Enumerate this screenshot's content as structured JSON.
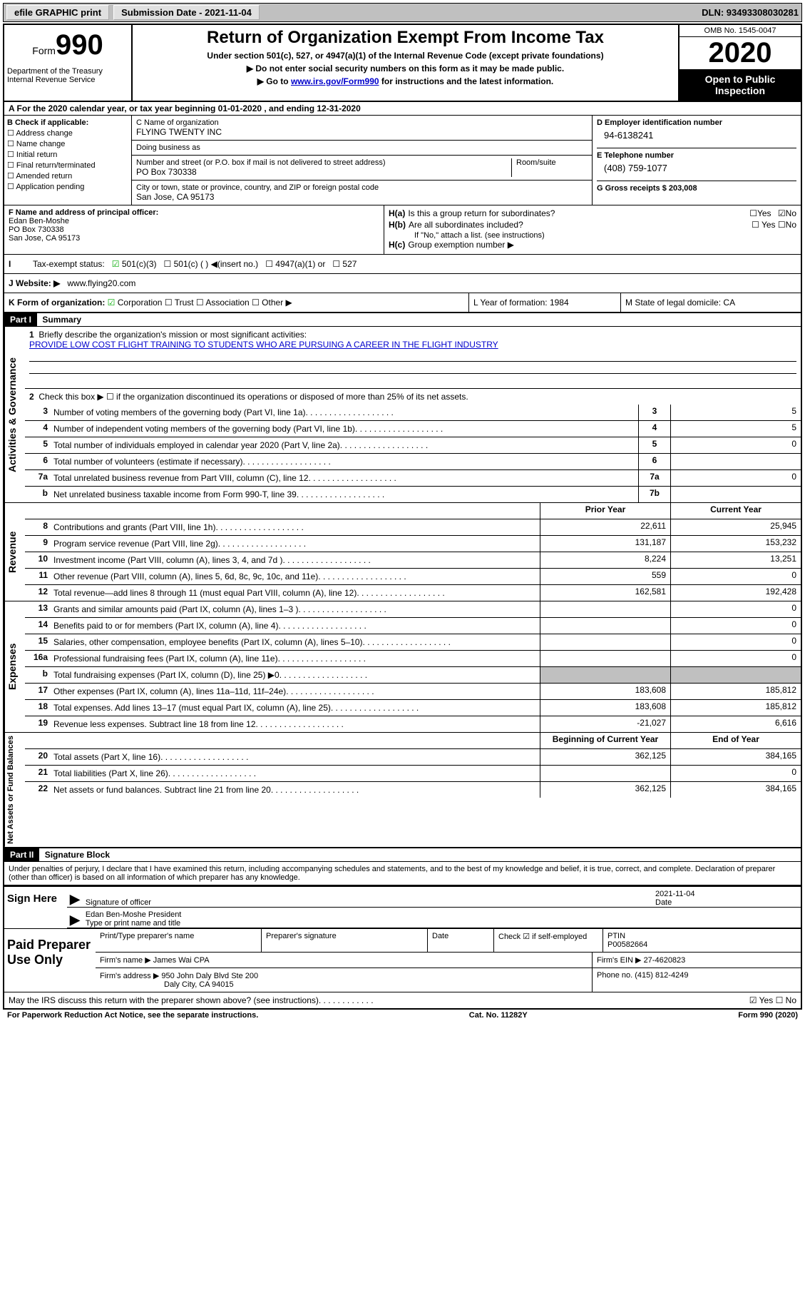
{
  "top_bar": {
    "efile": "efile GRAPHIC print",
    "sub_label": "Submission Date - 2021-11-04",
    "dln": "DLN: 93493308030281"
  },
  "header": {
    "form_word": "Form",
    "form_num": "990",
    "dept": "Department of the Treasury Internal Revenue Service",
    "title": "Return of Organization Exempt From Income Tax",
    "subtitle": "Under section 501(c), 527, or 4947(a)(1) of the Internal Revenue Code (except private foundations)",
    "instr1": "Do not enter social security numbers on this form as it may be made public.",
    "instr2_pre": "Go to ",
    "instr2_link": "www.irs.gov/Form990",
    "instr2_post": " for instructions and the latest information.",
    "omb": "OMB No. 1545-0047",
    "year": "2020",
    "inspect": "Open to Public Inspection"
  },
  "row_a": "A For the 2020 calendar year, or tax year beginning 01-01-2020    , and ending 12-31-2020",
  "col_b": {
    "hdr": "B Check if applicable:",
    "items": [
      "Address change",
      "Name change",
      "Initial return",
      "Final return/terminated",
      "Amended return",
      "Application pending"
    ]
  },
  "col_c": {
    "name_lbl": "C Name of organization",
    "name_val": "FLYING TWENTY INC",
    "dba_lbl": "Doing business as",
    "dba_val": "",
    "addr_lbl": "Number and street (or P.O. box if mail is not delivered to street address)",
    "room_lbl": "Room/suite",
    "addr_val": "PO Box 730338",
    "city_lbl": "City or town, state or province, country, and ZIP or foreign postal code",
    "city_val": "San Jose, CA  95173"
  },
  "col_d": {
    "ein_hdr": "D Employer identification number",
    "ein_val": "94-6138241",
    "tel_hdr": "E Telephone number",
    "tel_val": "(408) 759-1077",
    "gross_hdr": "G Gross receipts $ 203,008"
  },
  "block_f": {
    "hdr": "F  Name and address of principal officer:",
    "l1": "Edan Ben-Moshe",
    "l2": "PO Box 730338",
    "l3": "San Jose, CA  95173"
  },
  "block_h": {
    "a": "Is this a group return for subordinates?",
    "b": "Are all subordinates included?",
    "b_note": "If \"No,\" attach a list. (see instructions)",
    "c": "Group exemption number ▶"
  },
  "status": {
    "lbl": "Tax-exempt status:",
    "c3": "501(c)(3)",
    "c_other": "501(c) (   ) ◀(insert no.)",
    "a1": "4947(a)(1) or",
    "s527": "527"
  },
  "website": {
    "lbl": "J   Website: ▶",
    "val": "www.flying20.com"
  },
  "row_k": {
    "lbl": "K Form of organization:",
    "corp": "Corporation",
    "trust": "Trust",
    "assoc": "Association",
    "other": "Other ▶"
  },
  "row_l": {
    "lbl": "L Year of formation: 1984"
  },
  "row_m": {
    "lbl": "M State of legal domicile: CA"
  },
  "part1": {
    "hdr": "Part I",
    "title": "Summary",
    "vert1": "Activities & Governance",
    "vert2": "Revenue",
    "vert3": "Expenses",
    "vert4": "Net Assets or Fund Balances",
    "l1_lbl": "Briefly describe the organization's mission or most significant activities:",
    "l1_val": "PROVIDE LOW COST FLIGHT TRAINING TO STUDENTS WHO ARE PURSUING A CAREER IN THE FLIGHT INDUSTRY",
    "l2": "Check this box ▶ ☐  if the organization discontinued its operations or disposed of more than 25% of its net assets.",
    "lines_simple": [
      {
        "n": "3",
        "t": "Number of voting members of the governing body (Part VI, line 1a)",
        "c": "3",
        "v": "5"
      },
      {
        "n": "4",
        "t": "Number of independent voting members of the governing body (Part VI, line 1b)",
        "c": "4",
        "v": "5"
      },
      {
        "n": "5",
        "t": "Total number of individuals employed in calendar year 2020 (Part V, line 2a)",
        "c": "5",
        "v": "0"
      },
      {
        "n": "6",
        "t": "Total number of volunteers (estimate if necessary)",
        "c": "6",
        "v": ""
      },
      {
        "n": "7a",
        "t": "Total unrelated business revenue from Part VIII, column (C), line 12",
        "c": "7a",
        "v": "0"
      },
      {
        "n": "b",
        "t": "Net unrelated business taxable income from Form 990-T, line 39",
        "c": "7b",
        "v": ""
      }
    ],
    "col_hdr1": "Prior Year",
    "col_hdr2": "Current Year",
    "rev_lines": [
      {
        "n": "8",
        "t": "Contributions and grants (Part VIII, line 1h)",
        "v1": "22,611",
        "v2": "25,945"
      },
      {
        "n": "9",
        "t": "Program service revenue (Part VIII, line 2g)",
        "v1": "131,187",
        "v2": "153,232"
      },
      {
        "n": "10",
        "t": "Investment income (Part VIII, column (A), lines 3, 4, and 7d )",
        "v1": "8,224",
        "v2": "13,251"
      },
      {
        "n": "11",
        "t": "Other revenue (Part VIII, column (A), lines 5, 6d, 8c, 9c, 10c, and 11e)",
        "v1": "559",
        "v2": "0"
      },
      {
        "n": "12",
        "t": "Total revenue—add lines 8 through 11 (must equal Part VIII, column (A), line 12)",
        "v1": "162,581",
        "v2": "192,428"
      }
    ],
    "exp_lines": [
      {
        "n": "13",
        "t": "Grants and similar amounts paid (Part IX, column (A), lines 1–3 )",
        "v1": "",
        "v2": "0"
      },
      {
        "n": "14",
        "t": "Benefits paid to or for members (Part IX, column (A), line 4)",
        "v1": "",
        "v2": "0"
      },
      {
        "n": "15",
        "t": "Salaries, other compensation, employee benefits (Part IX, column (A), lines 5–10)",
        "v1": "",
        "v2": "0"
      },
      {
        "n": "16a",
        "t": "Professional fundraising fees (Part IX, column (A), line 11e)",
        "v1": "",
        "v2": "0"
      },
      {
        "n": "b",
        "t": "Total fundraising expenses (Part IX, column (D), line 25) ▶0",
        "v1": "",
        "v2": "",
        "shaded": true
      },
      {
        "n": "17",
        "t": "Other expenses (Part IX, column (A), lines 11a–11d, 11f–24e)",
        "v1": "183,608",
        "v2": "185,812"
      },
      {
        "n": "18",
        "t": "Total expenses. Add lines 13–17 (must equal Part IX, column (A), line 25)",
        "v1": "183,608",
        "v2": "185,812"
      },
      {
        "n": "19",
        "t": "Revenue less expenses. Subtract line 18 from line 12",
        "v1": "-21,027",
        "v2": "6,616"
      }
    ],
    "net_hdr1": "Beginning of Current Year",
    "net_hdr2": "End of Year",
    "net_lines": [
      {
        "n": "20",
        "t": "Total assets (Part X, line 16)",
        "v1": "362,125",
        "v2": "384,165"
      },
      {
        "n": "21",
        "t": "Total liabilities (Part X, line 26)",
        "v1": "",
        "v2": "0"
      },
      {
        "n": "22",
        "t": "Net assets or fund balances. Subtract line 21 from line 20",
        "v1": "362,125",
        "v2": "384,165"
      }
    ]
  },
  "part2": {
    "hdr": "Part II",
    "title": "Signature Block",
    "perjury": "Under penalties of perjury, I declare that I have examined this return, including accompanying schedules and statements, and to the best of my knowledge and belief, it is true, correct, and complete. Declaration of preparer (other than officer) is based on all information of which preparer has any knowledge.",
    "sign_here": "Sign Here",
    "sig_lbl": "Signature of officer",
    "sig_date": "2021-11-04",
    "date_lbl": "Date",
    "sig_name": "Edan Ben-Moshe  President",
    "sig_name_lbl": "Type or print name and title",
    "paid": "Paid Preparer Use Only",
    "prep_name_lbl": "Print/Type preparer's name",
    "prep_sig_lbl": "Preparer's signature",
    "prep_date_lbl": "Date",
    "prep_check": "Check ☑ if self-employed",
    "ptin_lbl": "PTIN",
    "ptin_val": "P00582664",
    "firm_lbl": "Firm's name    ▶",
    "firm_val": "James Wai CPA",
    "firm_ein_lbl": "Firm's EIN ▶",
    "firm_ein_val": "27-4620823",
    "firm_addr_lbl": "Firm's address ▶",
    "firm_addr_val": "950 John Daly Blvd Ste 200",
    "firm_addr2": "Daly City, CA  94015",
    "phone_lbl": "Phone no. (415) 812-4249",
    "discuss": "May the IRS discuss this return with the preparer shown above? (see instructions)",
    "discuss_yn": "☑ Yes   ☐ No"
  },
  "footer": {
    "left": "For Paperwork Reduction Act Notice, see the separate instructions.",
    "mid": "Cat. No. 11282Y",
    "right": "Form 990 (2020)"
  }
}
